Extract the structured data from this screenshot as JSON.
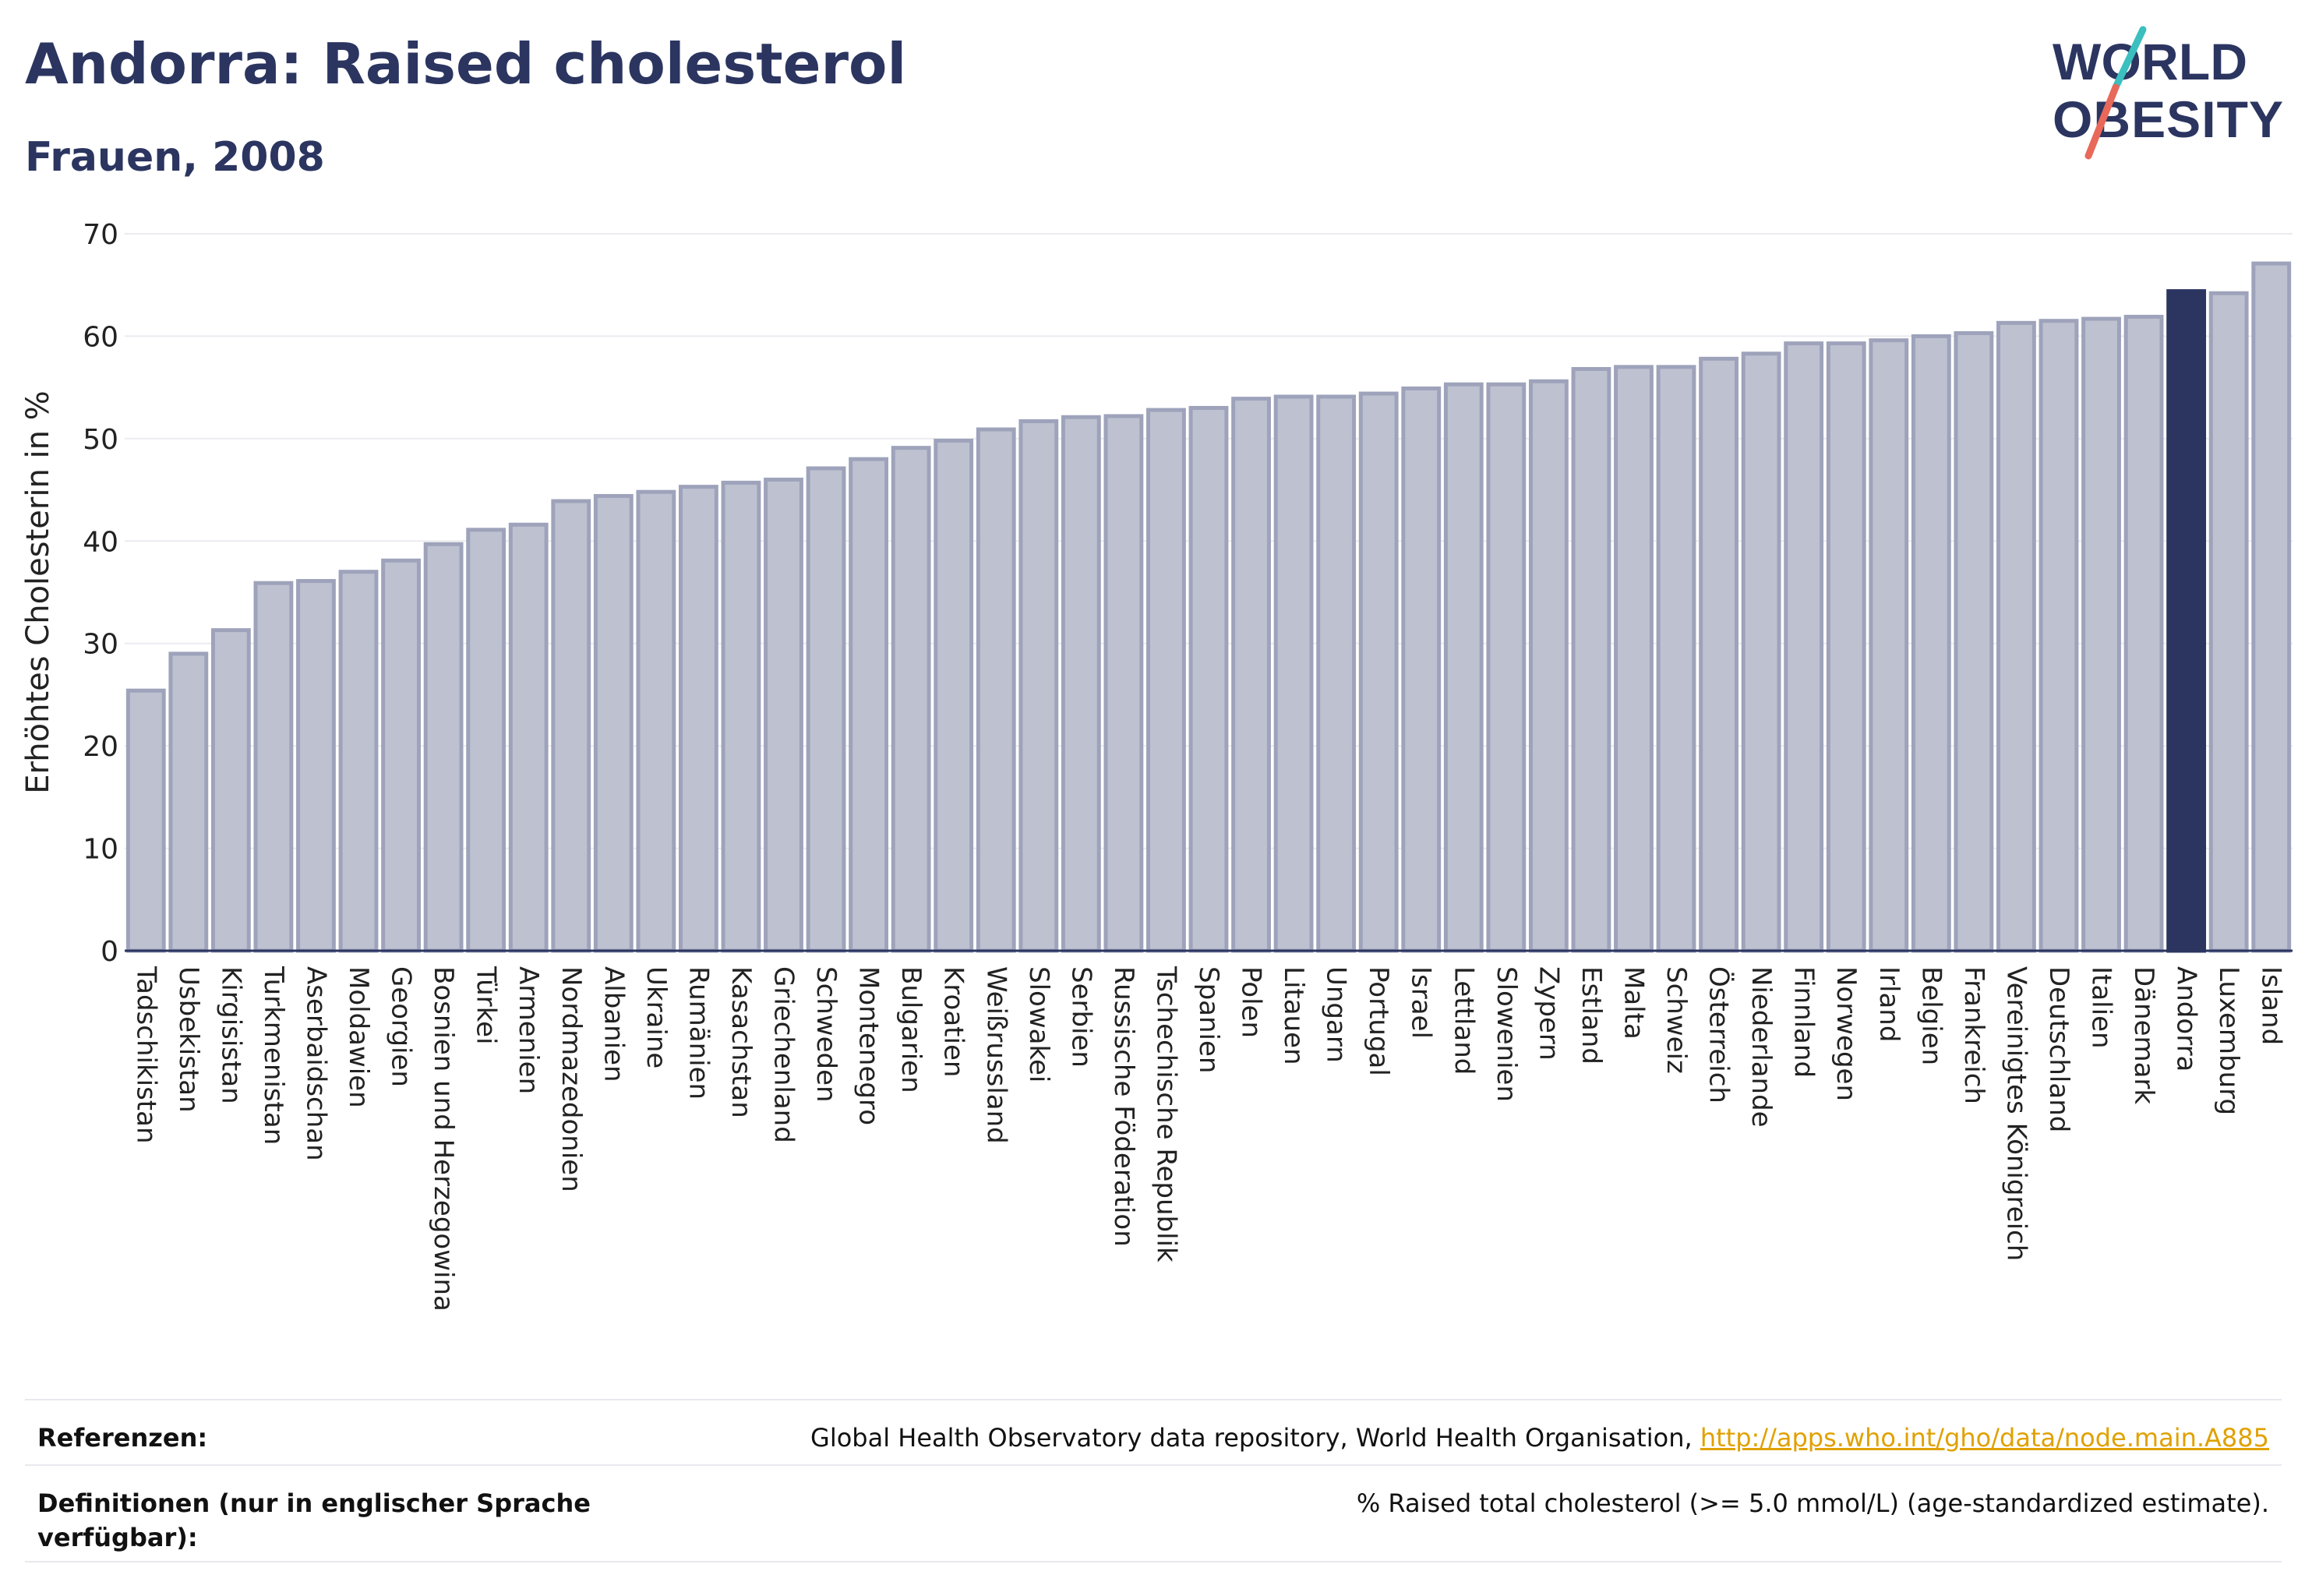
{
  "header": {
    "title": "Andorra: Raised cholesterol",
    "subtitle": "Frauen, 2008"
  },
  "logo": {
    "line1": "WORLD",
    "line2": "OBESITY"
  },
  "chart_data": {
    "type": "bar",
    "ylabel": "Erhöhtes Cholesterin in %",
    "ylim": [
      0,
      70
    ],
    "yticks": [
      0,
      10,
      20,
      30,
      40,
      50,
      60,
      70
    ],
    "grid": true,
    "highlight": "Andorra",
    "colors": {
      "bar": "#bec1d0",
      "bar_edge": "#9ea3bb",
      "highlight": "#2b3560"
    },
    "categories": [
      "Tadschikistan",
      "Usbekistan",
      "Kirgisistan",
      "Turkmenistan",
      "Aserbaidschan",
      "Moldawien",
      "Georgien",
      "Bosnien und Herzegowina",
      "Türkei",
      "Armenien",
      "Nordmazedonien",
      "Albanien",
      "Ukraine",
      "Rumänien",
      "Kasachstan",
      "Griechenland",
      "Schweden",
      "Montenegro",
      "Bulgarien",
      "Kroatien",
      "Weißrussland",
      "Slowakei",
      "Serbien",
      "Russische Föderation",
      "Tschechische Republik",
      "Spanien",
      "Polen",
      "Litauen",
      "Ungarn",
      "Portugal",
      "Israel",
      "Lettland",
      "Slowenien",
      "Zypern",
      "Estland",
      "Malta",
      "Schweiz",
      "Österreich",
      "Niederlande",
      "Finnland",
      "Norwegen",
      "Irland",
      "Belgien",
      "Frankreich",
      "Vereinigtes Königreich",
      "Deutschland",
      "Italien",
      "Dänemark",
      "Andorra",
      "Luxemburg",
      "Island"
    ],
    "values": [
      25.4,
      29.0,
      31.3,
      35.9,
      36.1,
      37.0,
      38.1,
      39.7,
      41.1,
      41.6,
      43.9,
      44.4,
      44.8,
      45.3,
      45.7,
      46.0,
      47.1,
      48.0,
      49.1,
      49.8,
      50.9,
      51.7,
      52.1,
      52.2,
      52.8,
      53.0,
      53.9,
      54.1,
      54.1,
      54.4,
      54.9,
      55.3,
      55.3,
      55.6,
      56.8,
      57.0,
      57.0,
      57.8,
      58.3,
      59.3,
      59.3,
      59.6,
      60.0,
      60.3,
      61.3,
      61.5,
      61.7,
      61.9,
      64.4,
      64.2,
      67.1
    ]
  },
  "references": {
    "ref_label": "Referenzen:",
    "ref_text": "Global Health Observatory data repository, World Health Organisation, ",
    "ref_link": "http://apps.who.int/gho/data/node.main.A885",
    "def_label": "Definitionen (nur in englischer Sprache verfügbar):",
    "def_text": "% Raised total cholesterol (>= 5.0 mmol/L) (age-standardized estimate)."
  }
}
